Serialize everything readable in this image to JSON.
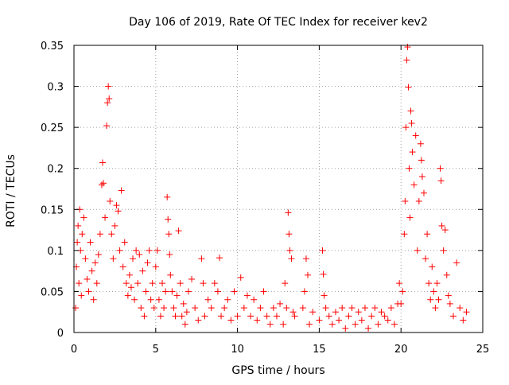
{
  "chart_data": {
    "type": "scatter",
    "title": "Day 106 of 2019, Rate Of TEC Index for receiver kev2",
    "xlabel": "GPS time / hours",
    "ylabel": "ROTI / TECUs",
    "xlim": [
      0,
      25
    ],
    "ylim": [
      0,
      0.35
    ],
    "x_ticks": [
      0,
      5,
      10,
      15,
      20,
      25
    ],
    "x_tick_labels": [
      "0",
      "5",
      "10",
      "15",
      "20",
      "25"
    ],
    "y_ticks": [
      0,
      0.05,
      0.1,
      0.15,
      0.2,
      0.25,
      0.3,
      0.35
    ],
    "y_tick_labels": [
      "0",
      "0.05",
      "0.1",
      "0.15",
      "0.2",
      "0.25",
      "0.3",
      "0.35"
    ],
    "grid": true,
    "marker": "+",
    "color": "#ff0000",
    "series": [
      {
        "name": "ROTI",
        "points": [
          [
            0.1,
            0.03
          ],
          [
            0.15,
            0.08
          ],
          [
            0.2,
            0.11
          ],
          [
            0.25,
            0.13
          ],
          [
            0.3,
            0.06
          ],
          [
            0.35,
            0.15
          ],
          [
            0.4,
            0.1
          ],
          [
            0.45,
            0.045
          ],
          [
            0.5,
            0.12
          ],
          [
            0.6,
            0.14
          ],
          [
            0.7,
            0.09
          ],
          [
            0.8,
            0.065
          ],
          [
            0.9,
            0.05
          ],
          [
            1.0,
            0.11
          ],
          [
            1.1,
            0.075
          ],
          [
            1.2,
            0.04
          ],
          [
            1.3,
            0.085
          ],
          [
            1.4,
            0.06
          ],
          [
            1.5,
            0.095
          ],
          [
            1.6,
            0.12
          ],
          [
            1.7,
            0.18
          ],
          [
            1.75,
            0.207
          ],
          [
            1.8,
            0.182
          ],
          [
            1.9,
            0.14
          ],
          [
            2.0,
            0.252
          ],
          [
            2.05,
            0.28
          ],
          [
            2.1,
            0.3
          ],
          [
            2.15,
            0.285
          ],
          [
            2.2,
            0.16
          ],
          [
            2.3,
            0.12
          ],
          [
            2.4,
            0.09
          ],
          [
            2.5,
            0.13
          ],
          [
            2.6,
            0.155
          ],
          [
            2.7,
            0.148
          ],
          [
            2.8,
            0.1
          ],
          [
            2.9,
            0.173
          ],
          [
            3.0,
            0.08
          ],
          [
            3.1,
            0.11
          ],
          [
            3.2,
            0.06
          ],
          [
            3.3,
            0.045
          ],
          [
            3.4,
            0.07
          ],
          [
            3.5,
            0.055
          ],
          [
            3.6,
            0.09
          ],
          [
            3.7,
            0.04
          ],
          [
            3.8,
            0.1
          ],
          [
            3.9,
            0.06
          ],
          [
            4.0,
            0.095
          ],
          [
            4.1,
            0.03
          ],
          [
            4.2,
            0.075
          ],
          [
            4.3,
            0.02
          ],
          [
            4.4,
            0.05
          ],
          [
            4.5,
            0.085
          ],
          [
            4.6,
            0.1
          ],
          [
            4.7,
            0.04
          ],
          [
            4.8,
            0.06
          ],
          [
            4.9,
            0.03
          ],
          [
            5.0,
            0.08
          ],
          [
            5.1,
            0.1
          ],
          [
            5.2,
            0.04
          ],
          [
            5.3,
            0.02
          ],
          [
            5.4,
            0.06
          ],
          [
            5.5,
            0.03
          ],
          [
            5.6,
            0.05
          ],
          [
            5.7,
            0.165
          ],
          [
            5.75,
            0.138
          ],
          [
            5.8,
            0.12
          ],
          [
            5.85,
            0.095
          ],
          [
            5.9,
            0.07
          ],
          [
            6.0,
            0.05
          ],
          [
            6.1,
            0.03
          ],
          [
            6.2,
            0.02
          ],
          [
            6.3,
            0.045
          ],
          [
            6.4,
            0.124
          ],
          [
            6.5,
            0.06
          ],
          [
            6.6,
            0.02
          ],
          [
            6.7,
            0.035
          ],
          [
            6.8,
            0.01
          ],
          [
            6.9,
            0.025
          ],
          [
            7.0,
            0.05
          ],
          [
            7.2,
            0.065
          ],
          [
            7.4,
            0.03
          ],
          [
            7.6,
            0.015
          ],
          [
            7.8,
            0.09
          ],
          [
            7.9,
            0.06
          ],
          [
            8.0,
            0.02
          ],
          [
            8.2,
            0.04
          ],
          [
            8.4,
            0.03
          ],
          [
            8.6,
            0.06
          ],
          [
            8.8,
            0.05
          ],
          [
            8.9,
            0.091
          ],
          [
            9.0,
            0.02
          ],
          [
            9.2,
            0.03
          ],
          [
            9.4,
            0.04
          ],
          [
            9.6,
            0.015
          ],
          [
            9.8,
            0.05
          ],
          [
            10.0,
            0.02
          ],
          [
            10.2,
            0.067
          ],
          [
            10.4,
            0.03
          ],
          [
            10.6,
            0.045
          ],
          [
            10.8,
            0.02
          ],
          [
            11.0,
            0.04
          ],
          [
            11.2,
            0.015
          ],
          [
            11.4,
            0.03
          ],
          [
            11.6,
            0.05
          ],
          [
            11.8,
            0.02
          ],
          [
            12.0,
            0.01
          ],
          [
            12.2,
            0.03
          ],
          [
            12.4,
            0.02
          ],
          [
            12.6,
            0.035
          ],
          [
            12.8,
            0.01
          ],
          [
            12.9,
            0.06
          ],
          [
            13.0,
            0.03
          ],
          [
            13.1,
            0.146
          ],
          [
            13.15,
            0.12
          ],
          [
            13.2,
            0.1
          ],
          [
            13.3,
            0.09
          ],
          [
            13.4,
            0.025
          ],
          [
            13.5,
            0.02
          ],
          [
            14.0,
            0.03
          ],
          [
            14.1,
            0.05
          ],
          [
            14.2,
            0.09
          ],
          [
            14.3,
            0.07
          ],
          [
            14.4,
            0.01
          ],
          [
            14.6,
            0.025
          ],
          [
            15.0,
            0.015
          ],
          [
            15.2,
            0.1
          ],
          [
            15.25,
            0.071
          ],
          [
            15.3,
            0.045
          ],
          [
            15.4,
            0.03
          ],
          [
            15.6,
            0.02
          ],
          [
            15.8,
            0.01
          ],
          [
            16.0,
            0.025
          ],
          [
            16.2,
            0.015
          ],
          [
            16.4,
            0.03
          ],
          [
            16.6,
            0.005
          ],
          [
            16.8,
            0.02
          ],
          [
            17.0,
            0.03
          ],
          [
            17.2,
            0.01
          ],
          [
            17.4,
            0.025
          ],
          [
            17.6,
            0.015
          ],
          [
            17.8,
            0.03
          ],
          [
            18.0,
            0.005
          ],
          [
            18.2,
            0.02
          ],
          [
            18.4,
            0.03
          ],
          [
            18.6,
            0.01
          ],
          [
            18.8,
            0.025
          ],
          [
            19.0,
            0.02
          ],
          [
            19.2,
            0.015
          ],
          [
            19.4,
            0.03
          ],
          [
            19.6,
            0.01
          ],
          [
            19.8,
            0.035
          ],
          [
            19.9,
            0.06
          ],
          [
            20.0,
            0.035
          ],
          [
            20.1,
            0.05
          ],
          [
            20.2,
            0.12
          ],
          [
            20.25,
            0.16
          ],
          [
            20.3,
            0.25
          ],
          [
            20.35,
            0.332
          ],
          [
            20.4,
            0.348
          ],
          [
            20.45,
            0.299
          ],
          [
            20.5,
            0.2
          ],
          [
            20.55,
            0.14
          ],
          [
            20.6,
            0.27
          ],
          [
            20.65,
            0.255
          ],
          [
            20.7,
            0.22
          ],
          [
            20.8,
            0.18
          ],
          [
            20.9,
            0.24
          ],
          [
            21.0,
            0.1
          ],
          [
            21.1,
            0.16
          ],
          [
            21.2,
            0.23
          ],
          [
            21.25,
            0.21
          ],
          [
            21.3,
            0.19
          ],
          [
            21.4,
            0.17
          ],
          [
            21.5,
            0.09
          ],
          [
            21.6,
            0.12
          ],
          [
            21.7,
            0.06
          ],
          [
            21.8,
            0.04
          ],
          [
            21.9,
            0.08
          ],
          [
            22.0,
            0.05
          ],
          [
            22.1,
            0.03
          ],
          [
            22.2,
            0.06
          ],
          [
            22.3,
            0.04
          ],
          [
            22.4,
            0.2
          ],
          [
            22.45,
            0.185
          ],
          [
            22.5,
            0.13
          ],
          [
            22.6,
            0.1
          ],
          [
            22.7,
            0.125
          ],
          [
            22.8,
            0.07
          ],
          [
            22.9,
            0.045
          ],
          [
            23.0,
            0.035
          ],
          [
            23.2,
            0.02
          ],
          [
            23.4,
            0.085
          ],
          [
            23.6,
            0.03
          ],
          [
            23.8,
            0.015
          ],
          [
            24.0,
            0.025
          ]
        ]
      }
    ]
  }
}
